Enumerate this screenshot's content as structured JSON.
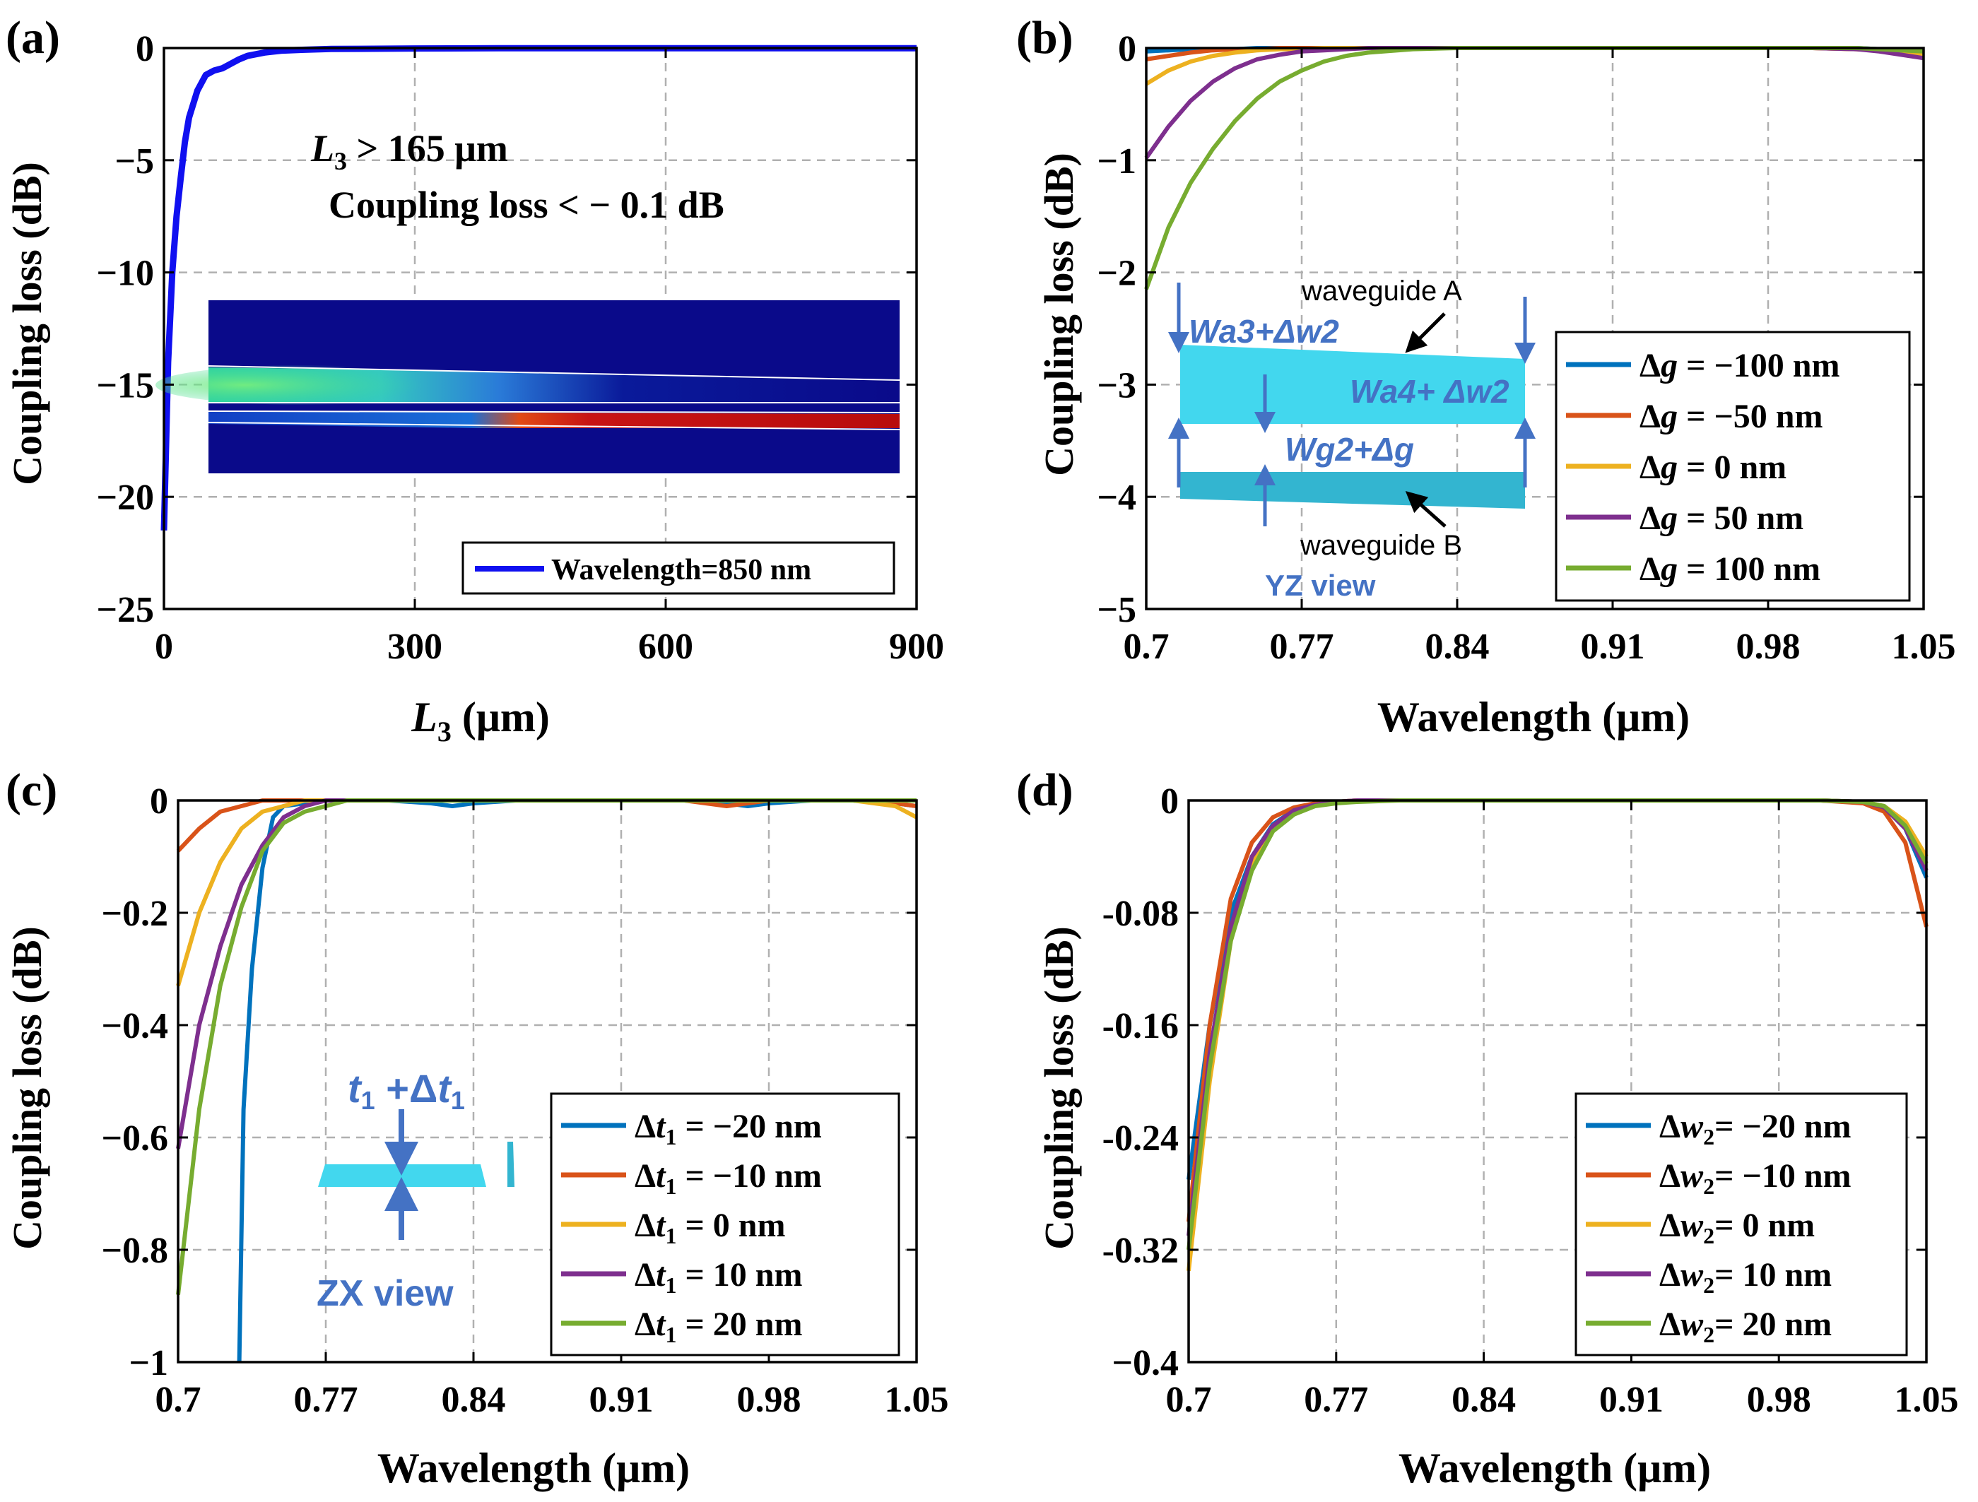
{
  "colors": {
    "blue": "#0072BD",
    "orange": "#D95319",
    "yellow": "#EDB120",
    "purple": "#7E2F8E",
    "green": "#77AC30",
    "bright_blue": "#1010F0",
    "annot": "#4472C4",
    "wg_fill": "#42D7EE",
    "wg_fill2": "#33B5D0",
    "grid": "#b0b0b0"
  },
  "chart_data": [
    {
      "id": "a",
      "panel_label": "(a)",
      "type": "line",
      "xlabel_main": "L",
      "xlabel_sub": "3",
      "xlabel_rest": " (μm)",
      "ylabel": "Coupling loss (dB)",
      "xlim": [
        0,
        900
      ],
      "ylim": [
        -25,
        0
      ],
      "xticks": [
        0,
        300,
        600,
        900
      ],
      "xtick_labels": [
        "0",
        "300",
        "600",
        "900"
      ],
      "yticks": [
        -25,
        -20,
        -15,
        -10,
        -5,
        0
      ],
      "ytick_labels": [
        "−25",
        "−20",
        "−15",
        "−10",
        "−5",
        "0"
      ],
      "grid": true,
      "legend_location": "bottom-right",
      "annotation_line1_main": "L",
      "annotation_line1_sub": "3",
      "annotation_line1_rest": " > 165 μm",
      "annotation_line2": "Coupling loss < − 0.1 dB",
      "inset": "simulated optical field intensity map (top view)",
      "series": [
        {
          "name": "Wavelength=850 nm",
          "color_key": "bright_blue",
          "x": [
            0,
            5,
            10,
            15,
            20,
            25,
            30,
            40,
            50,
            60,
            70,
            80,
            90,
            100,
            120,
            140,
            165,
            200,
            250,
            300,
            400,
            500,
            600,
            700,
            800,
            900
          ],
          "y": [
            -21.5,
            -14,
            -10,
            -7.5,
            -5.8,
            -4.2,
            -3.1,
            -1.9,
            -1.2,
            -1.0,
            -0.9,
            -0.7,
            -0.5,
            -0.35,
            -0.2,
            -0.12,
            -0.08,
            -0.04,
            -0.03,
            -0.02,
            -0.01,
            -0.01,
            -0.01,
            -0.01,
            -0.01,
            -0.01
          ]
        }
      ]
    },
    {
      "id": "b",
      "panel_label": "(b)",
      "type": "line",
      "xlabel": "Wavelength (μm)",
      "ylabel": "Coupling loss (dB)",
      "xlim": [
        0.7,
        1.05
      ],
      "ylim": [
        -5,
        0
      ],
      "xticks": [
        0.7,
        0.77,
        0.84,
        0.91,
        0.98,
        1.05
      ],
      "xtick_labels": [
        "0.7",
        "0.77",
        "0.84",
        "0.91",
        "0.98",
        "1.05"
      ],
      "yticks": [
        -5,
        -4,
        -3,
        -2,
        -1,
        0
      ],
      "ytick_labels": [
        "−5",
        "−4",
        "−3",
        "−2",
        "−1",
        "0"
      ],
      "grid": true,
      "legend_location": "bottom-right",
      "legend_var": "Δg",
      "inset_labels": {
        "waveguide_a": "waveguide A",
        "waveguide_b": "waveguide B",
        "view": "YZ view",
        "wa3": "Wa3+Δw2",
        "wa4": "Wa4+ Δw2",
        "wg2": "Wg2+Δg"
      },
      "x": [
        0.7,
        0.71,
        0.72,
        0.73,
        0.74,
        0.75,
        0.76,
        0.77,
        0.78,
        0.79,
        0.8,
        0.82,
        0.84,
        0.9,
        0.95,
        1.0,
        1.02,
        1.03,
        1.04,
        1.05
      ],
      "series": [
        {
          "name": "Δg = −100 nm",
          "label_pre": "Δ",
          "label_var": "g",
          "label_post": " = −100 nm",
          "color_key": "blue",
          "values": [
            -0.03,
            -0.02,
            -0.01,
            -0.01,
            -0.01,
            0,
            0,
            0,
            0,
            0,
            0,
            0,
            0,
            0,
            0,
            0,
            0,
            -0.01,
            -0.01,
            -0.02
          ]
        },
        {
          "name": "Δg = −50 nm",
          "label_pre": "Δ",
          "label_var": "g",
          "label_post": " = −50 nm",
          "color_key": "orange",
          "values": [
            -0.1,
            -0.07,
            -0.04,
            -0.02,
            -0.01,
            -0.01,
            0,
            0,
            0,
            0,
            0,
            0,
            0,
            0,
            0,
            0,
            -0.01,
            -0.02,
            -0.04,
            -0.05
          ]
        },
        {
          "name": "Δg = 0 nm",
          "label_pre": "Δ",
          "label_var": "g",
          "label_post": " =  0 nm",
          "color_key": "yellow",
          "values": [
            -0.32,
            -0.2,
            -0.12,
            -0.07,
            -0.04,
            -0.02,
            -0.01,
            -0.01,
            0,
            0,
            0,
            0,
            0,
            0,
            0,
            0,
            -0.01,
            -0.02,
            -0.04,
            -0.06
          ]
        },
        {
          "name": "Δg = 50 nm",
          "label_pre": "Δ",
          "label_var": "g",
          "label_post": " =  50 nm",
          "color_key": "purple",
          "values": [
            -0.98,
            -0.7,
            -0.47,
            -0.3,
            -0.18,
            -0.1,
            -0.06,
            -0.03,
            -0.02,
            -0.01,
            0,
            0,
            0,
            0,
            0,
            0,
            -0.01,
            -0.03,
            -0.06,
            -0.09
          ]
        },
        {
          "name": "Δg = 100 nm",
          "label_pre": "Δ",
          "label_var": "g",
          "label_post": " =  100 nm",
          "color_key": "green",
          "values": [
            -2.15,
            -1.6,
            -1.2,
            -0.9,
            -0.65,
            -0.45,
            -0.3,
            -0.2,
            -0.12,
            -0.07,
            -0.04,
            -0.01,
            0,
            0,
            0,
            0,
            0,
            -0.01,
            -0.02,
            -0.03
          ]
        }
      ]
    },
    {
      "id": "c",
      "panel_label": "(c)",
      "type": "line",
      "xlabel": "Wavelength (μm)",
      "ylabel": "Coupling loss (dB)",
      "xlim": [
        0.7,
        1.05
      ],
      "ylim": [
        -1,
        0
      ],
      "xticks": [
        0.7,
        0.77,
        0.84,
        0.91,
        0.98,
        1.05
      ],
      "xtick_labels": [
        "0.7",
        "0.77",
        "0.84",
        "0.91",
        "0.98",
        "1.05"
      ],
      "yticks": [
        -1,
        -0.8,
        -0.6,
        -0.4,
        -0.2,
        0
      ],
      "ytick_labels": [
        "−1",
        "−0.8",
        "−0.6",
        "−0.4",
        "−0.2",
        "0"
      ],
      "grid": true,
      "legend_location": "bottom-right",
      "legend_var": "Δt1",
      "inset_labels": {
        "thickness_main": "t",
        "thickness_sub": "1",
        "thickness_plus": " +Δ",
        "thickness_var": "t",
        "thickness_sub2": "1",
        "view": "ZX view"
      },
      "x": [
        0.7,
        0.71,
        0.72,
        0.73,
        0.74,
        0.75,
        0.76,
        0.77,
        0.78,
        0.79,
        0.8,
        0.82,
        0.84,
        0.86,
        0.9,
        0.94,
        0.96,
        0.97,
        0.98,
        1.0,
        1.02,
        1.04,
        1.05
      ],
      "series": [
        {
          "name": "Δt1 = −20 nm",
          "label_pre": "Δ",
          "label_var": "t",
          "label_sub": "1",
          "label_post": " = −20 nm",
          "color_key": "blue",
          "x": [
            0.729,
            0.731,
            0.735,
            0.74,
            0.745,
            0.75,
            0.76,
            0.77,
            0.78,
            0.8,
            0.82,
            0.83,
            0.84,
            0.86,
            0.9,
            0.94,
            0.96,
            0.97,
            0.98,
            1.0,
            1.02,
            1.04,
            1.05
          ],
          "values": [
            -1.0,
            -0.55,
            -0.3,
            -0.12,
            -0.03,
            -0.01,
            -0.005,
            0,
            0,
            0,
            -0.005,
            -0.01,
            -0.005,
            0,
            0,
            0,
            -0.005,
            -0.01,
            -0.005,
            0,
            0,
            -0.005,
            -0.01
          ]
        },
        {
          "name": "Δt1 = −10 nm",
          "label_pre": "Δ",
          "label_var": "t",
          "label_sub": "1",
          "label_post": " = −10 nm",
          "color_key": "orange",
          "values": [
            -0.09,
            -0.05,
            -0.02,
            -0.01,
            0,
            0,
            0,
            0,
            0,
            0,
            0,
            0,
            0,
            0,
            0,
            0,
            -0.01,
            -0.005,
            0,
            0,
            0,
            -0.005,
            -0.01
          ]
        },
        {
          "name": "Δt1 = 0 nm",
          "label_pre": "Δ",
          "label_var": "t",
          "label_sub": "1",
          "label_post": " =  0 nm",
          "color_key": "yellow",
          "values": [
            -0.33,
            -0.2,
            -0.11,
            -0.05,
            -0.02,
            -0.01,
            0,
            0,
            0,
            0,
            0,
            0,
            0,
            0,
            0,
            0,
            0,
            0,
            0,
            0,
            0,
            -0.01,
            -0.03
          ]
        },
        {
          "name": "Δt1 = 10 nm",
          "label_pre": "Δ",
          "label_var": "t",
          "label_sub": "1",
          "label_post": " =  10 nm",
          "color_key": "purple",
          "values": [
            -0.62,
            -0.4,
            -0.26,
            -0.15,
            -0.08,
            -0.03,
            -0.01,
            0,
            0,
            0,
            0,
            0,
            0,
            0,
            0,
            0,
            0,
            0,
            0,
            0,
            0,
            0,
            0
          ]
        },
        {
          "name": "Δt1 = 20 nm",
          "label_pre": "Δ",
          "label_var": "t",
          "label_sub": "1",
          "label_post": " =  20 nm",
          "color_key": "green",
          "values": [
            -0.88,
            -0.55,
            -0.33,
            -0.19,
            -0.09,
            -0.04,
            -0.02,
            -0.01,
            0,
            0,
            0,
            0,
            0,
            0,
            0,
            0,
            0,
            0,
            0,
            0,
            0,
            0,
            0
          ]
        }
      ]
    },
    {
      "id": "d",
      "panel_label": "(d)",
      "type": "line",
      "xlabel": "Wavelength (μm)",
      "ylabel": "Coupling loss (dB)",
      "xlim": [
        0.7,
        1.05
      ],
      "ylim": [
        -0.4,
        0
      ],
      "xticks": [
        0.7,
        0.77,
        0.84,
        0.91,
        0.98,
        1.05
      ],
      "xtick_labels": [
        "0.7",
        "0.77",
        "0.84",
        "0.91",
        "0.98",
        "1.05"
      ],
      "yticks": [
        -0.4,
        -0.32,
        -0.24,
        -0.16,
        -0.08,
        0
      ],
      "ytick_labels": [
        "−0.4",
        "-0.32",
        "-0.24",
        "-0.16",
        "-0.08",
        "0"
      ],
      "grid": true,
      "legend_location": "bottom-right",
      "legend_var": "Δw2",
      "x": [
        0.7,
        0.71,
        0.72,
        0.73,
        0.74,
        0.75,
        0.76,
        0.77,
        0.78,
        0.8,
        0.84,
        0.9,
        0.96,
        1.0,
        1.02,
        1.03,
        1.04,
        1.05
      ],
      "series": [
        {
          "name": "Δw2 = −20 nm",
          "label_pre": "Δ",
          "label_var": "w",
          "label_sub": "2",
          "label_post": "= −20 nm",
          "color_key": "blue",
          "values": [
            -0.27,
            -0.16,
            -0.08,
            -0.04,
            -0.017,
            -0.007,
            -0.003,
            -0.001,
            0,
            0,
            0,
            0,
            0,
            0,
            -0.001,
            -0.005,
            -0.02,
            -0.055
          ]
        },
        {
          "name": "Δw2 = −10 nm",
          "label_pre": "Δ",
          "label_var": "w",
          "label_sub": "2",
          "label_post": "= −10 nm",
          "color_key": "orange",
          "values": [
            -0.3,
            -0.16,
            -0.07,
            -0.03,
            -0.012,
            -0.005,
            -0.002,
            -0.001,
            0,
            0,
            0,
            0,
            0,
            0,
            -0.002,
            -0.008,
            -0.03,
            -0.09
          ]
        },
        {
          "name": "Δw2 = 0 nm",
          "label_pre": "Δ",
          "label_var": "w",
          "label_sub": "2",
          "label_post": "=  0 nm",
          "color_key": "yellow",
          "values": [
            -0.335,
            -0.2,
            -0.1,
            -0.045,
            -0.02,
            -0.008,
            -0.003,
            -0.001,
            0,
            0,
            0,
            0,
            0,
            0,
            -0.001,
            -0.004,
            -0.015,
            -0.04
          ]
        },
        {
          "name": "Δw2 = 10 nm",
          "label_pre": "Δ",
          "label_var": "w",
          "label_sub": "2",
          "label_post": "=  10 nm",
          "color_key": "purple",
          "values": [
            -0.31,
            -0.18,
            -0.09,
            -0.04,
            -0.018,
            -0.007,
            -0.003,
            -0.001,
            0,
            0,
            0,
            0,
            0,
            0,
            -0.001,
            -0.005,
            -0.02,
            -0.05
          ]
        },
        {
          "name": "Δw2 = 20 nm",
          "label_pre": "Δ",
          "label_var": "w",
          "label_sub": "2",
          "label_post": "=  20 nm",
          "color_key": "green",
          "values": [
            -0.32,
            -0.19,
            -0.1,
            -0.05,
            -0.022,
            -0.01,
            -0.004,
            -0.002,
            -0.001,
            0,
            0,
            0,
            0,
            0,
            -0.001,
            -0.004,
            -0.018,
            -0.045
          ]
        }
      ]
    }
  ]
}
